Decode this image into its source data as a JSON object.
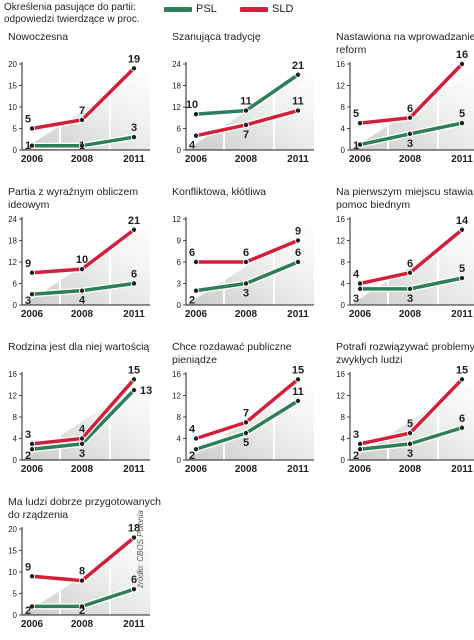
{
  "legend": {
    "title_line1": "Określenia pasujące do partii:",
    "title_line2": "odpowiedzi twierdzące w proc.",
    "items": [
      {
        "name": "PSL",
        "color": "#2e7d5b"
      },
      {
        "name": "SLD",
        "color": "#d21f3c"
      }
    ]
  },
  "source": "źródło: CBOS Polonia",
  "chart_data": [
    {
      "type": "line",
      "title": [
        "Nowoczesna"
      ],
      "x": [
        "2006",
        "2008",
        "2011"
      ],
      "yticks": [
        0,
        5,
        10,
        15,
        20
      ],
      "ylim": [
        0,
        20
      ],
      "series": [
        {
          "name": "PSL",
          "values": [
            1,
            1,
            3
          ]
        },
        {
          "name": "SLD",
          "values": [
            5,
            7,
            19
          ]
        }
      ]
    },
    {
      "type": "line",
      "title": [
        "Szanująca tradycję"
      ],
      "x": [
        "2006",
        "2008",
        "2011"
      ],
      "yticks": [
        0,
        6,
        12,
        18,
        24
      ],
      "ylim": [
        0,
        24
      ],
      "series": [
        {
          "name": "PSL",
          "values": [
            10,
            11,
            21
          ]
        },
        {
          "name": "SLD",
          "values": [
            4,
            7,
            11
          ]
        }
      ]
    },
    {
      "type": "line",
      "title": [
        "Nastawiona na wprowadzanie",
        "reform"
      ],
      "x": [
        "2006",
        "2008",
        "2011"
      ],
      "yticks": [
        0,
        4,
        8,
        12,
        16
      ],
      "ylim": [
        0,
        16
      ],
      "series": [
        {
          "name": "PSL",
          "values": [
            1,
            3,
            5
          ]
        },
        {
          "name": "SLD",
          "values": [
            5,
            6,
            16
          ]
        }
      ]
    },
    {
      "type": "line",
      "title": [
        "Partia z wyraźnym obliczem",
        "ideowym"
      ],
      "x": [
        "2006",
        "2008",
        "2011"
      ],
      "yticks": [
        0,
        6,
        12,
        18,
        24
      ],
      "ylim": [
        0,
        24
      ],
      "series": [
        {
          "name": "PSL",
          "values": [
            3,
            4,
            6
          ]
        },
        {
          "name": "SLD",
          "values": [
            9,
            10,
            21
          ]
        }
      ]
    },
    {
      "type": "line",
      "title": [
        "Konfliktowa, kłótliwa"
      ],
      "x": [
        "2006",
        "2008",
        "2011"
      ],
      "yticks": [
        0,
        3,
        6,
        9,
        12
      ],
      "ylim": [
        0,
        12
      ],
      "series": [
        {
          "name": "PSL",
          "values": [
            2,
            3,
            6
          ]
        },
        {
          "name": "SLD",
          "values": [
            6,
            6,
            9
          ]
        }
      ]
    },
    {
      "type": "line",
      "title": [
        "Na pierwszym miejscu stawia",
        "pomoc biednym"
      ],
      "x": [
        "2006",
        "2008",
        "2011"
      ],
      "yticks": [
        0,
        4,
        8,
        12,
        16
      ],
      "ylim": [
        0,
        16
      ],
      "series": [
        {
          "name": "PSL",
          "values": [
            3,
            3,
            5
          ]
        },
        {
          "name": "SLD",
          "values": [
            4,
            6,
            14
          ]
        }
      ]
    },
    {
      "type": "line",
      "title": [
        "Rodzina jest dla niej wartością"
      ],
      "x": [
        "2006",
        "2008",
        "2011"
      ],
      "yticks": [
        0,
        4,
        8,
        12,
        16
      ],
      "ylim": [
        0,
        16
      ],
      "series": [
        {
          "name": "PSL",
          "values": [
            2,
            3,
            13
          ]
        },
        {
          "name": "SLD",
          "values": [
            3,
            4,
            15
          ]
        }
      ]
    },
    {
      "type": "line",
      "title": [
        "Chce rozdawać publiczne",
        "pieniądze"
      ],
      "x": [
        "2006",
        "2008",
        "2011"
      ],
      "yticks": [
        0,
        4,
        8,
        12,
        16
      ],
      "ylim": [
        0,
        16
      ],
      "series": [
        {
          "name": "PSL",
          "values": [
            2,
            5,
            11
          ]
        },
        {
          "name": "SLD",
          "values": [
            4,
            7,
            15
          ]
        }
      ]
    },
    {
      "type": "line",
      "title": [
        "Potrafi rozwiązywać problemy",
        "zwykłych ludzi"
      ],
      "x": [
        "2006",
        "2008",
        "2011"
      ],
      "yticks": [
        0,
        4,
        8,
        12,
        16
      ],
      "ylim": [
        0,
        16
      ],
      "series": [
        {
          "name": "PSL",
          "values": [
            2,
            3,
            6
          ]
        },
        {
          "name": "SLD",
          "values": [
            3,
            5,
            15
          ]
        }
      ]
    },
    {
      "type": "line",
      "title": [
        "Ma ludzi dobrze przygotowanych",
        "do rządzenia"
      ],
      "x": [
        "2006",
        "2008",
        "2011"
      ],
      "yticks": [
        0,
        5,
        10,
        15,
        20
      ],
      "ylim": [
        0,
        20
      ],
      "series": [
        {
          "name": "PSL",
          "values": [
            2,
            2,
            6
          ]
        },
        {
          "name": "SLD",
          "values": [
            9,
            8,
            18
          ]
        }
      ]
    }
  ]
}
